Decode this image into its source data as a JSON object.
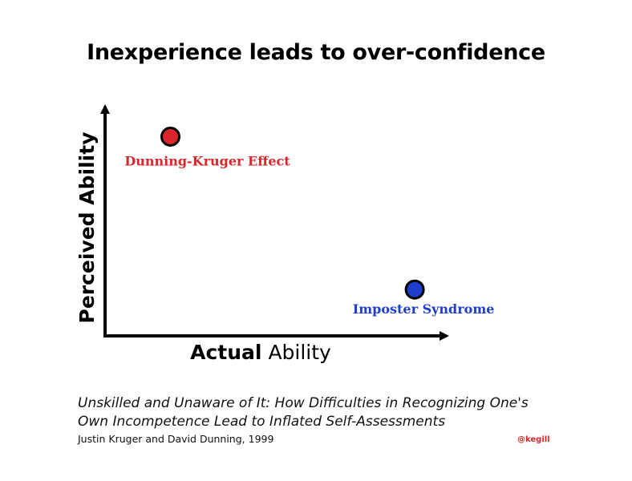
{
  "title": "Inexperience leads to over-confidence",
  "chart_data": {
    "type": "scatter",
    "xlabel_bold": "Actual",
    "xlabel_rest": "Ability",
    "ylabel": "Perceived Ability",
    "xlim": [
      0,
      1
    ],
    "ylim": [
      0,
      1
    ],
    "grid": false,
    "points": [
      {
        "label": "Dunning-Kruger Effect",
        "x": 0.19,
        "y": 0.86,
        "color": "#d8262b"
      },
      {
        "label": "Imposter Syndrome",
        "x": 0.9,
        "y": 0.2,
        "color": "#1d3fcc"
      }
    ]
  },
  "citation": {
    "line1": "Unskilled and Unaware of It: How Difficulties in Recognizing One's",
    "line2": "Own Incompetence Lead to Inflated Self-Assessments",
    "authors": "Justin Kruger and David Dunning, 1999"
  },
  "handle": "@kegill",
  "colors": {
    "axis": "#000000",
    "dk": "#d8262b",
    "imposter": "#1d3fcc"
  }
}
